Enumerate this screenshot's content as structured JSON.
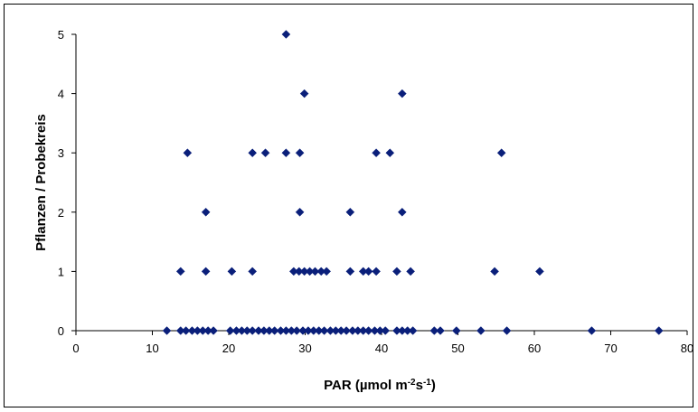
{
  "chart_data": {
    "type": "scatter",
    "title": "",
    "xlabel": {
      "main": "PAR (µmol m",
      "sup1": "-2",
      "mid": "s",
      "sup2": "-1",
      "end": ")"
    },
    "ylabel": "Pflanzen / Probekreis",
    "xlim": [
      0,
      80
    ],
    "ylim": [
      0,
      5
    ],
    "xticks": [
      "0",
      "10",
      "20",
      "30",
      "40",
      "50",
      "60",
      "70",
      "80"
    ],
    "yticks": [
      "0",
      "1",
      "2",
      "3",
      "4",
      "5"
    ],
    "grid": false,
    "legend": "none",
    "marker_color": "#0a1f7a",
    "series": [
      {
        "points": [
          [
            11.9,
            0
          ],
          [
            13.7,
            0
          ],
          [
            14.4,
            0
          ],
          [
            15.2,
            0
          ],
          [
            15.9,
            0
          ],
          [
            16.6,
            0
          ],
          [
            17.3,
            0
          ],
          [
            18.0,
            0
          ],
          [
            20.2,
            0
          ],
          [
            21.0,
            0
          ],
          [
            21.7,
            0
          ],
          [
            22.4,
            0
          ],
          [
            23.1,
            0
          ],
          [
            23.9,
            0
          ],
          [
            24.6,
            0
          ],
          [
            25.3,
            0
          ],
          [
            26.0,
            0
          ],
          [
            26.8,
            0
          ],
          [
            27.5,
            0
          ],
          [
            28.2,
            0
          ],
          [
            28.9,
            0
          ],
          [
            29.7,
            0
          ],
          [
            30.4,
            0
          ],
          [
            31.1,
            0
          ],
          [
            31.8,
            0
          ],
          [
            32.5,
            0
          ],
          [
            33.3,
            0
          ],
          [
            34.0,
            0
          ],
          [
            34.7,
            0
          ],
          [
            35.4,
            0
          ],
          [
            36.2,
            0
          ],
          [
            36.9,
            0
          ],
          [
            37.6,
            0
          ],
          [
            38.3,
            0
          ],
          [
            39.1,
            0
          ],
          [
            39.8,
            0
          ],
          [
            40.5,
            0
          ],
          [
            42.0,
            0
          ],
          [
            42.7,
            0
          ],
          [
            43.4,
            0
          ],
          [
            44.1,
            0
          ],
          [
            46.9,
            0
          ],
          [
            47.7,
            0
          ],
          [
            49.8,
            0
          ],
          [
            53.0,
            0
          ],
          [
            56.4,
            0
          ],
          [
            67.5,
            0
          ],
          [
            76.3,
            0
          ],
          [
            13.7,
            1
          ],
          [
            17.0,
            1
          ],
          [
            20.4,
            1
          ],
          [
            23.1,
            1
          ],
          [
            28.5,
            1
          ],
          [
            29.2,
            1
          ],
          [
            29.9,
            1
          ],
          [
            30.6,
            1
          ],
          [
            31.3,
            1
          ],
          [
            32.1,
            1
          ],
          [
            32.8,
            1
          ],
          [
            35.9,
            1
          ],
          [
            37.6,
            1
          ],
          [
            38.3,
            1
          ],
          [
            39.3,
            1
          ],
          [
            42.0,
            1
          ],
          [
            43.8,
            1
          ],
          [
            54.8,
            1
          ],
          [
            60.7,
            1
          ],
          [
            17.0,
            2
          ],
          [
            29.3,
            2
          ],
          [
            35.9,
            2
          ],
          [
            42.7,
            2
          ],
          [
            14.6,
            3
          ],
          [
            23.1,
            3
          ],
          [
            24.8,
            3
          ],
          [
            27.5,
            3
          ],
          [
            29.3,
            3
          ],
          [
            39.3,
            3
          ],
          [
            41.1,
            3
          ],
          [
            55.7,
            3
          ],
          [
            29.9,
            4
          ],
          [
            42.7,
            4
          ],
          [
            27.5,
            5
          ]
        ]
      }
    ]
  }
}
